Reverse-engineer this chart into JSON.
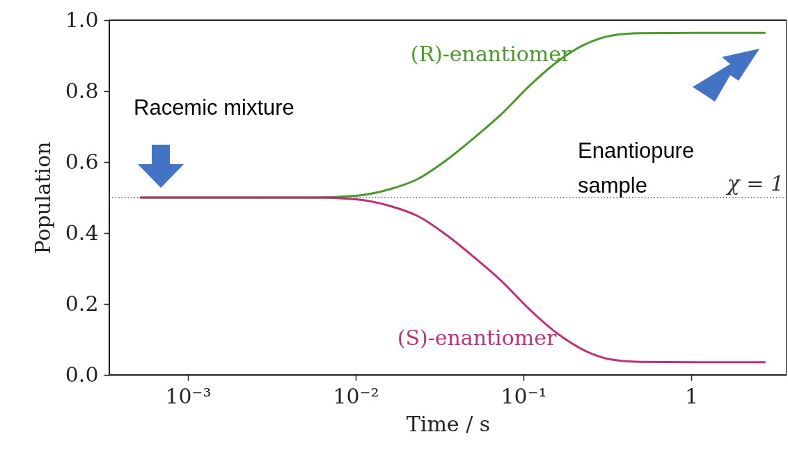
{
  "chart_data": {
    "type": "line",
    "xlabel": "Time / s",
    "ylabel": "Population",
    "x": [
      0.000523,
      0.00565,
      0.01,
      0.0161,
      0.0236,
      0.0344,
      0.0504,
      0.0738,
      0.108,
      0.158,
      0.231,
      0.338,
      0.494,
      1.06,
      2.74
    ],
    "series": [
      {
        "name": "(R)-enantiomer",
        "color": "#4a9a2a",
        "values": [
          0.5,
          0.5,
          0.505,
          0.524,
          0.553,
          0.604,
          0.667,
          0.735,
          0.814,
          0.882,
          0.931,
          0.957,
          0.963,
          0.964,
          0.964
        ]
      },
      {
        "name": "(S)-enantiomer",
        "color": "#c0307a",
        "values": [
          0.5,
          0.5,
          0.495,
          0.476,
          0.447,
          0.396,
          0.333,
          0.265,
          0.186,
          0.118,
          0.069,
          0.043,
          0.037,
          0.036,
          0.036
        ]
      }
    ],
    "log": "x",
    "xlim": [
      0.00034,
      3.7
    ],
    "ylim": [
      0,
      1
    ],
    "xticks": [
      {
        "value": 0.001,
        "label": "10⁻³"
      },
      {
        "value": 0.01,
        "label": "10⁻²"
      },
      {
        "value": 0.1,
        "label": "10⁻¹"
      },
      1
    ],
    "yticks": [
      {
        "value": 0,
        "label": "0.0"
      },
      {
        "value": 0.2,
        "label": "0.2"
      },
      {
        "value": 0.4,
        "label": "0.4"
      },
      {
        "value": 0.6,
        "label": "0.6"
      },
      {
        "value": 0.8,
        "label": "0.8"
      },
      {
        "value": 1,
        "label": "1.0"
      }
    ],
    "ref_lines": [
      {
        "axis": "y",
        "value": 0.5,
        "label": "χ = 1",
        "color": "#555555",
        "line_style": "dotted"
      }
    ],
    "annotations": [
      "Racemic mixture",
      "Enantiopure\nsample"
    ],
    "grid": false,
    "legend": false,
    "line_style": "solid",
    "marker": "none"
  }
}
